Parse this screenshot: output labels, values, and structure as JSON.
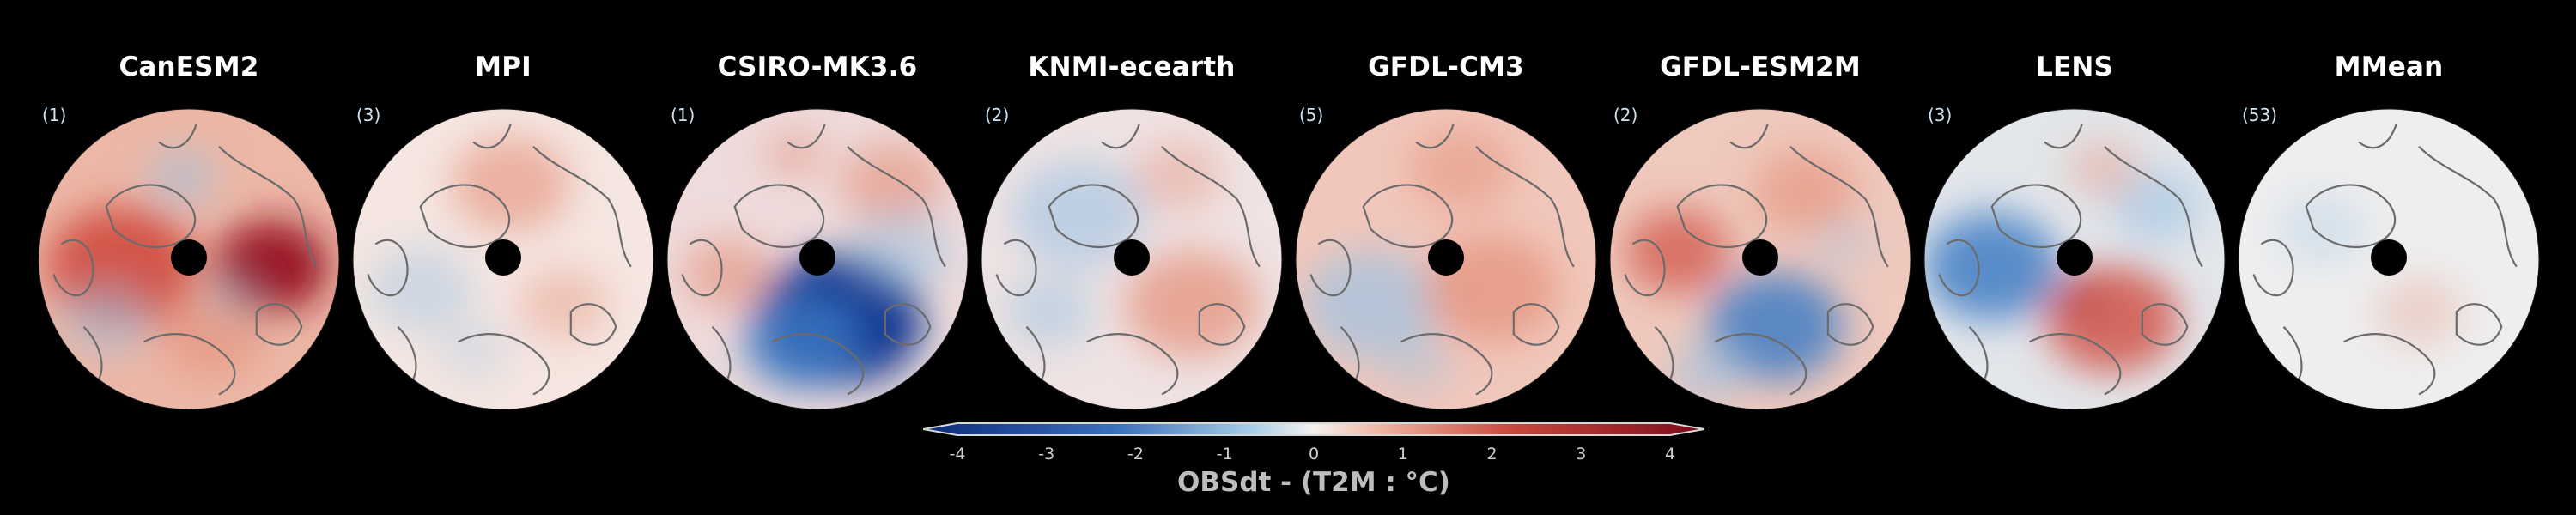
{
  "panels": [
    {
      "title": "CanESM2",
      "count": "(1)",
      "base": "#ecb7a6",
      "blobs": [
        [
          "a",
          -0.45,
          0.05,
          0.5,
          0.8,
          0.9
        ],
        [
          "a",
          0.55,
          0.05,
          0.38,
          0.9,
          1
        ],
        [
          "b",
          -0.05,
          -0.55,
          0.22,
          0.35,
          0.6
        ],
        [
          "b",
          -0.55,
          0.4,
          0.3,
          0.35,
          0.5
        ],
        [
          "a",
          0.15,
          0.5,
          0.35,
          0.6,
          0.6
        ],
        [
          "b",
          0.3,
          0.25,
          0.2,
          0.2,
          0.4
        ]
      ]
    },
    {
      "title": "MPI",
      "count": "(3)",
      "base": "#f5e6e1",
      "blobs": [
        [
          "a",
          0.05,
          -0.5,
          0.4,
          0.45,
          0.6
        ],
        [
          "b",
          -0.55,
          0.2,
          0.35,
          0.3,
          0.45
        ],
        [
          "a",
          0.4,
          0.3,
          0.3,
          0.35,
          0.4
        ],
        [
          "b",
          -0.2,
          0.6,
          0.25,
          0.25,
          0.3
        ]
      ]
    },
    {
      "title": "CSIRO-MK3.6",
      "count": "(1)",
      "base": "#eedbdb",
      "blobs": [
        [
          "b",
          0.15,
          0.4,
          0.55,
          1.0,
          1
        ],
        [
          "b",
          -0.1,
          0.55,
          0.4,
          0.8,
          0.8
        ],
        [
          "a",
          0.5,
          -0.5,
          0.35,
          0.55,
          0.6
        ],
        [
          "a",
          -0.6,
          0.1,
          0.3,
          0.5,
          0.6
        ],
        [
          "b",
          0.55,
          -0.05,
          0.35,
          0.5,
          0.5
        ],
        [
          "a",
          -0.15,
          -0.7,
          0.2,
          0.45,
          0.5
        ]
      ]
    },
    {
      "title": "KNMI-ecearth",
      "count": "(2)",
      "base": "#efe3e3",
      "blobs": [
        [
          "b",
          -0.35,
          -0.3,
          0.45,
          0.4,
          0.6
        ],
        [
          "a",
          0.4,
          0.3,
          0.45,
          0.55,
          0.7
        ],
        [
          "b",
          -0.55,
          0.35,
          0.3,
          0.35,
          0.5
        ],
        [
          "a",
          0.3,
          -0.55,
          0.3,
          0.35,
          0.4
        ]
      ]
    },
    {
      "title": "GFDL-CM3",
      "count": "(5)",
      "base": "#f1c7bb",
      "blobs": [
        [
          "b",
          -0.5,
          0.3,
          0.45,
          0.55,
          0.7
        ],
        [
          "a",
          0.3,
          0.2,
          0.45,
          0.6,
          0.7
        ],
        [
          "b",
          -0.2,
          0.7,
          0.25,
          0.35,
          0.4
        ],
        [
          "a",
          0.1,
          -0.6,
          0.35,
          0.45,
          0.5
        ]
      ]
    },
    {
      "title": "GFDL-ESM2M",
      "count": "(2)",
      "base": "#efc9bd",
      "blobs": [
        [
          "b",
          0.1,
          0.45,
          0.45,
          0.7,
          0.85
        ],
        [
          "a",
          -0.55,
          -0.05,
          0.35,
          0.7,
          0.7
        ],
        [
          "a",
          0.3,
          -0.45,
          0.35,
          0.55,
          0.6
        ],
        [
          "b",
          0.55,
          -0.1,
          0.2,
          0.35,
          0.4
        ],
        [
          "b",
          -0.35,
          0.75,
          0.25,
          0.5,
          0.6
        ]
      ]
    },
    {
      "title": "LENS",
      "count": "(3)",
      "base": "#e3e6ea",
      "blobs": [
        [
          "b",
          -0.55,
          0.05,
          0.45,
          0.7,
          0.85
        ],
        [
          "a",
          0.25,
          0.4,
          0.45,
          0.65,
          0.8
        ],
        [
          "a",
          0.05,
          0.25,
          0.12,
          0.9,
          0.6
        ],
        [
          "b",
          0.55,
          -0.35,
          0.3,
          0.5,
          0.6
        ],
        [
          "a",
          0.2,
          -0.6,
          0.25,
          0.35,
          0.4
        ]
      ]
    },
    {
      "title": "MMean",
      "count": "(53)",
      "base": "#eeeeef",
      "blobs": [
        [
          "a",
          0.2,
          0.35,
          0.3,
          0.15,
          0.3
        ],
        [
          "b",
          -0.45,
          -0.2,
          0.3,
          0.15,
          0.3
        ]
      ]
    }
  ],
  "colorbar": {
    "label": "OBSdt - (T2M : °C)",
    "ticks": [
      "-4",
      "-3",
      "-2",
      "-1",
      "0",
      "1",
      "2",
      "3",
      "4"
    ],
    "min": -4,
    "max": 4,
    "colors": {
      "cold": "#0c2a7a",
      "mid_cold": "#5c9bd4",
      "neutral": "#f4f1ef",
      "mid_warm": "#e0806b",
      "warm": "#7a0a1c"
    }
  }
}
